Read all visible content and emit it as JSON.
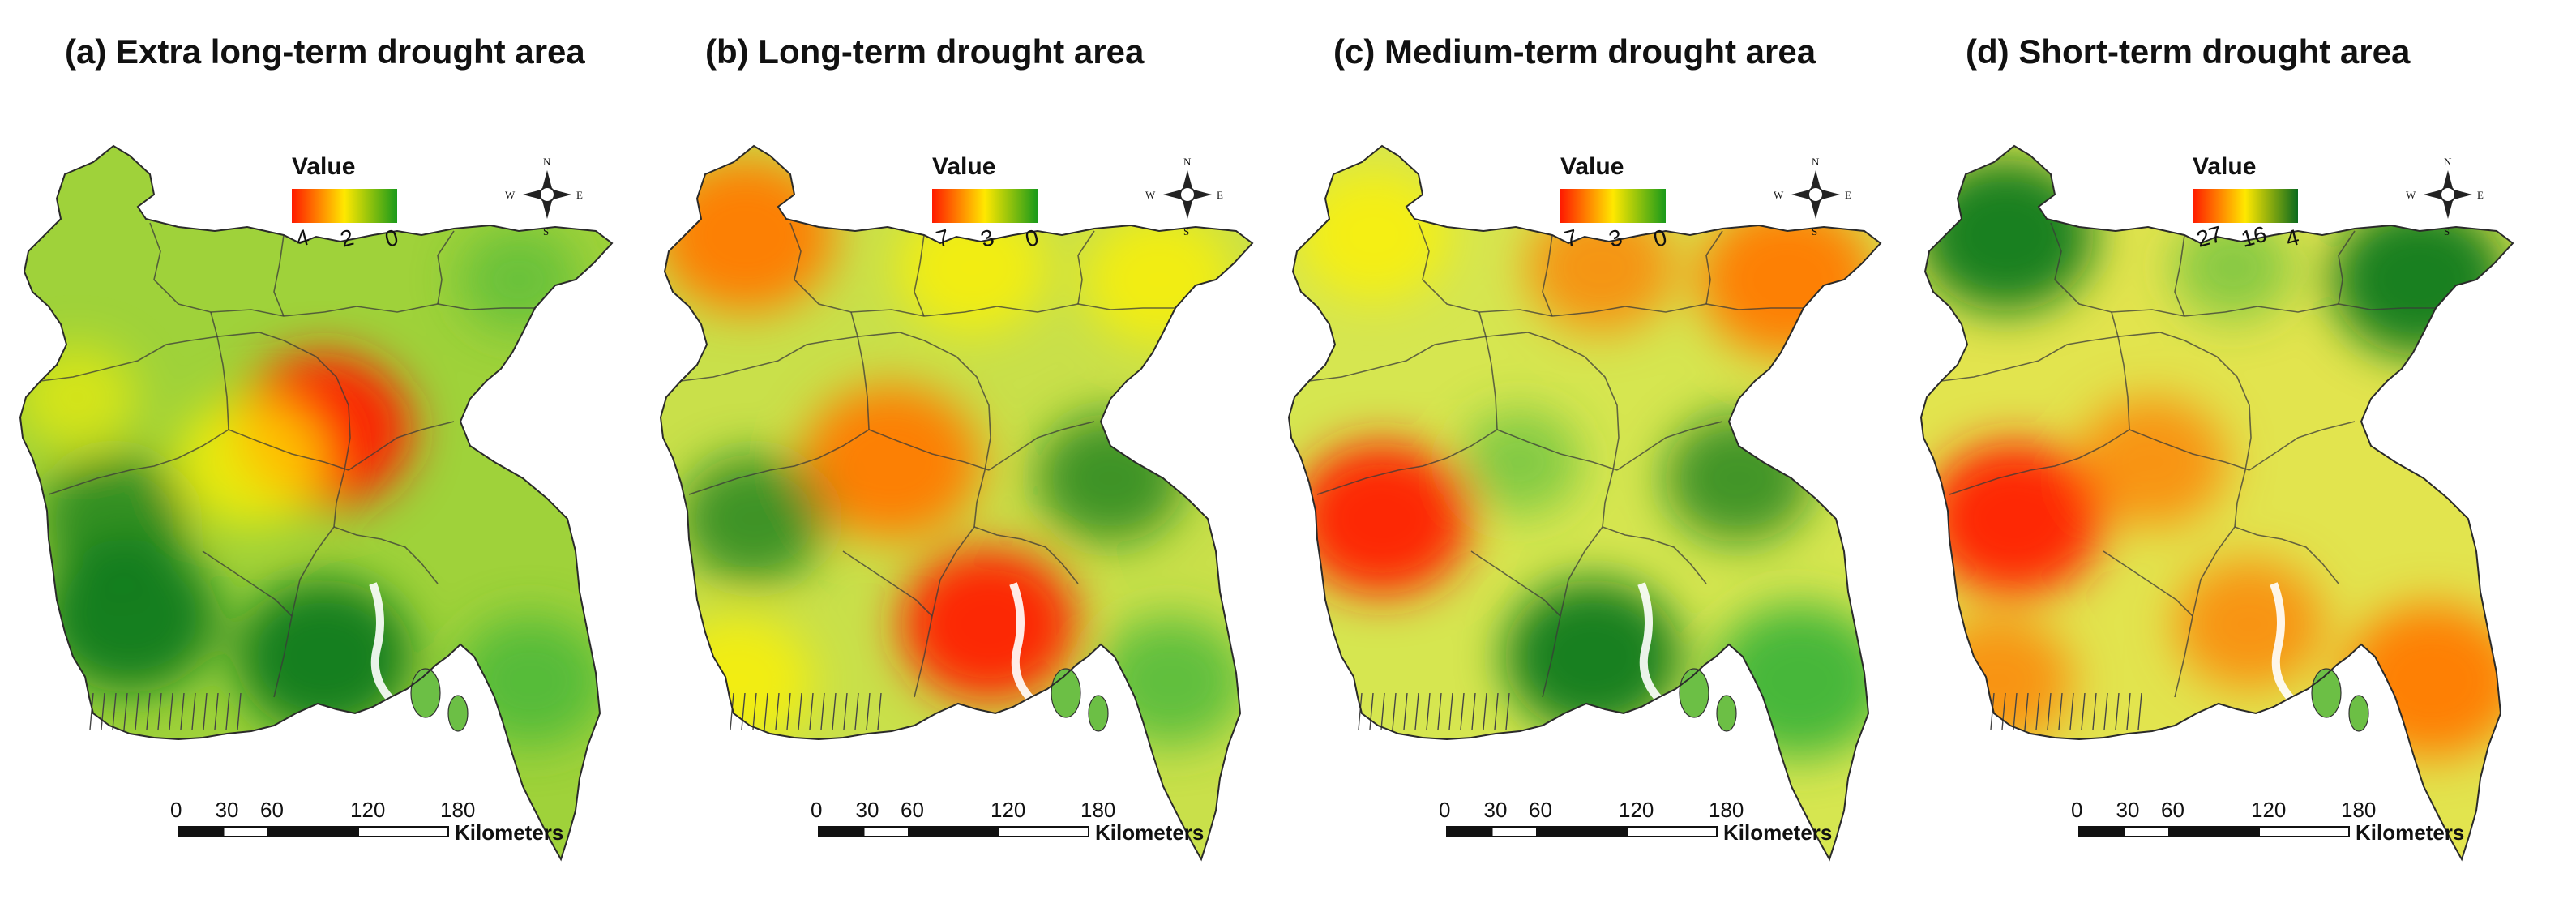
{
  "figure": {
    "panels": [
      {
        "id": "a",
        "title": "(a) Extra long-term drought area",
        "legend": {
          "title": "Value",
          "ticks": [
            "4",
            "2",
            "0"
          ],
          "colors": [
            "#ff1a00",
            "#ffe800",
            "#1a9a1a"
          ]
        },
        "base_color": "#9fd23a",
        "hotspots": [
          {
            "place": "central-north",
            "tone": "red",
            "strength": "strong"
          },
          {
            "place": "central",
            "tone": "yellow",
            "strength": "medium"
          },
          {
            "place": "northwest",
            "tone": "yellow",
            "strength": "weak"
          },
          {
            "place": "southwest",
            "tone": "darkgreen",
            "strength": "strong"
          },
          {
            "place": "south-central",
            "tone": "darkgreen",
            "strength": "strong"
          },
          {
            "place": "west",
            "tone": "darkgreen",
            "strength": "medium"
          },
          {
            "place": "northeast",
            "tone": "green",
            "strength": "weak"
          },
          {
            "place": "southeast",
            "tone": "green",
            "strength": "medium"
          }
        ],
        "scale": {
          "ticks": [
            "0",
            "30",
            "60",
            "120",
            "180"
          ],
          "unit": "Kilometers"
        },
        "compass": {
          "n": "N",
          "s": "S",
          "e": "E",
          "w": "W"
        }
      },
      {
        "id": "b",
        "title": "(b) Long-term drought area",
        "legend": {
          "title": "Value",
          "ticks": [
            "7",
            "3",
            "0"
          ],
          "colors": [
            "#ff1a00",
            "#ffe800",
            "#1a9a1a"
          ]
        },
        "base_color": "#c9e04a",
        "hotspots": [
          {
            "place": "far-north",
            "tone": "orange",
            "strength": "strong"
          },
          {
            "place": "central",
            "tone": "orange",
            "strength": "strong"
          },
          {
            "place": "delta",
            "tone": "red",
            "strength": "strong"
          },
          {
            "place": "north-central",
            "tone": "yellow",
            "strength": "medium"
          },
          {
            "place": "northeast",
            "tone": "yellow",
            "strength": "medium"
          },
          {
            "place": "southwest-coast",
            "tone": "yellow",
            "strength": "medium"
          },
          {
            "place": "west",
            "tone": "darkgreen",
            "strength": "medium"
          },
          {
            "place": "east",
            "tone": "darkgreen",
            "strength": "medium"
          },
          {
            "place": "southeast",
            "tone": "green",
            "strength": "medium"
          }
        ],
        "scale": {
          "ticks": [
            "0",
            "30",
            "60",
            "120",
            "180"
          ],
          "unit": "Kilometers"
        },
        "compass": {
          "n": "N",
          "s": "S",
          "e": "E",
          "w": "W"
        }
      },
      {
        "id": "c",
        "title": "(c) Medium-term drought area",
        "legend": {
          "title": "Value",
          "ticks": [
            "7",
            "3",
            "0"
          ],
          "colors": [
            "#ff1a00",
            "#ffe800",
            "#1a9a1a"
          ]
        },
        "base_color": "#d6e650",
        "hotspots": [
          {
            "place": "west",
            "tone": "red",
            "strength": "strong"
          },
          {
            "place": "northeast",
            "tone": "orange",
            "strength": "strong"
          },
          {
            "place": "north-central",
            "tone": "orange",
            "strength": "medium"
          },
          {
            "place": "far-north",
            "tone": "yellow",
            "strength": "medium"
          },
          {
            "place": "south-central",
            "tone": "darkgreen",
            "strength": "strong"
          },
          {
            "place": "east",
            "tone": "darkgreen",
            "strength": "medium"
          },
          {
            "place": "southeast",
            "tone": "green",
            "strength": "strong"
          },
          {
            "place": "central",
            "tone": "green",
            "strength": "weak"
          }
        ],
        "scale": {
          "ticks": [
            "0",
            "30",
            "60",
            "120",
            "180"
          ],
          "unit": "Kilometers"
        },
        "compass": {
          "n": "N",
          "s": "S",
          "e": "E",
          "w": "W"
        }
      },
      {
        "id": "d",
        "title": "(d) Short-term drought area",
        "legend": {
          "title": "Value",
          "ticks": [
            "27",
            "16",
            "4"
          ],
          "colors": [
            "#ff1a00",
            "#ffe800",
            "#0b6a1e"
          ]
        },
        "base_color": "#e2e44e",
        "hotspots": [
          {
            "place": "far-north",
            "tone": "darkgreen",
            "strength": "strong"
          },
          {
            "place": "northeast",
            "tone": "darkgreen",
            "strength": "strong"
          },
          {
            "place": "west",
            "tone": "red",
            "strength": "strong"
          },
          {
            "place": "central",
            "tone": "orange",
            "strength": "medium"
          },
          {
            "place": "delta",
            "tone": "orange",
            "strength": "medium"
          },
          {
            "place": "southeast",
            "tone": "orange",
            "strength": "strong"
          },
          {
            "place": "southwest-coast",
            "tone": "orange",
            "strength": "medium"
          },
          {
            "place": "north-central",
            "tone": "green",
            "strength": "weak"
          }
        ],
        "scale": {
          "ticks": [
            "0",
            "30",
            "60",
            "120",
            "180"
          ],
          "unit": "Kilometers"
        },
        "compass": {
          "n": "N",
          "s": "S",
          "e": "E",
          "w": "W"
        }
      }
    ]
  }
}
